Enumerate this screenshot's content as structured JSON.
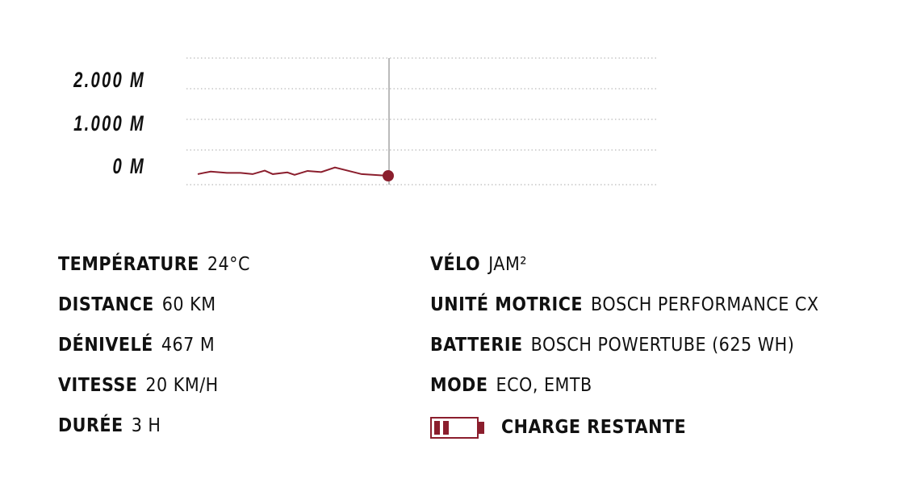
{
  "chart_data": {
    "type": "line",
    "ytick_labels": [
      "2.000 M",
      "1.000 M",
      "0 M"
    ],
    "yticks": [
      2000,
      1000,
      0
    ],
    "grid": true,
    "color": "#8b1e2d",
    "values": [
      110,
      280,
      190,
      190,
      110,
      340,
      110,
      225,
      60,
      320,
      245,
      545,
      110,
      0
    ],
    "marker": "end-point"
  },
  "specs_left": [
    {
      "label": "TEMPÉRATURE",
      "value": "24°C"
    },
    {
      "label": "DISTANCE",
      "value": "60 KM"
    },
    {
      "label": "DÉNIVELÉ",
      "value": "467 M"
    },
    {
      "label": "VITESSE",
      "value": "20 KM/H"
    },
    {
      "label": "DURÉE",
      "value": "3 H"
    }
  ],
  "specs_right": [
    {
      "label": "VÉLO",
      "value": "JAM²"
    },
    {
      "label": "UNITÉ MOTRICE",
      "value": "BOSCH PERFORMANCE CX"
    },
    {
      "label": "BATTERIE",
      "value": "BOSCH POWERTUBE (625 WH)"
    },
    {
      "label": "MODE",
      "value": "ECO, EMTB"
    }
  ],
  "battery": {
    "label": "CHARGE RESTANTE",
    "icon": "battery-icon",
    "charge_fraction": 0.4,
    "color": "#8b1e2d"
  }
}
